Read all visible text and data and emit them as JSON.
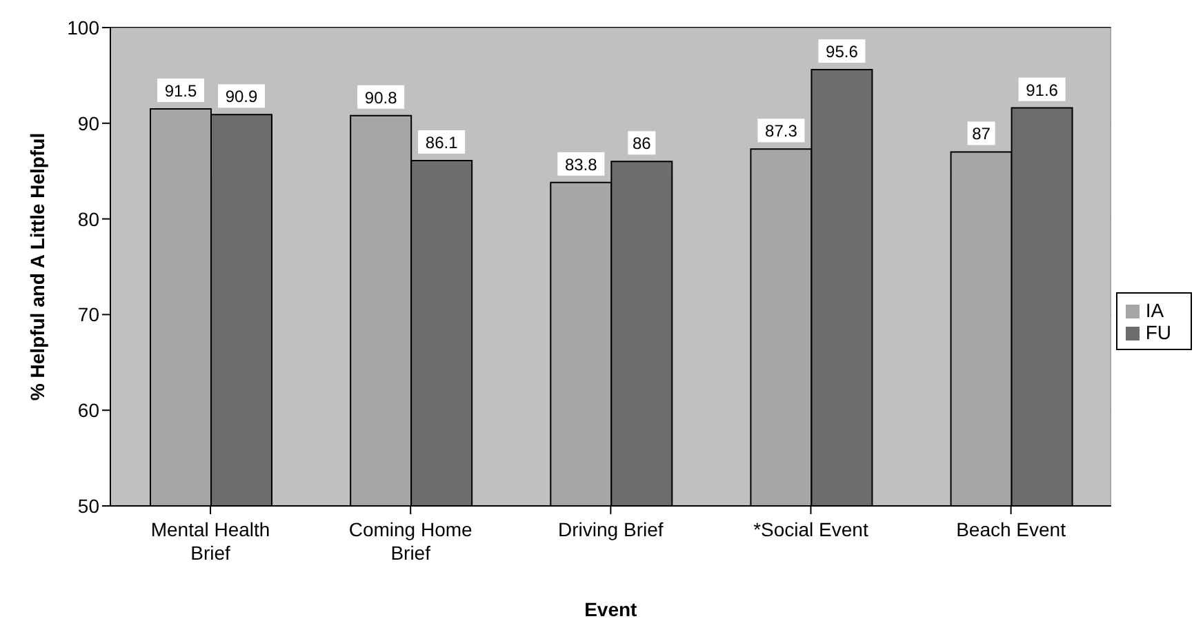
{
  "chart_data": {
    "type": "bar",
    "xlabel": "Event",
    "ylabel": "% Helpful and A Little Helpful",
    "categories": [
      "Mental Health Brief",
      "Coming Home Brief",
      "Driving Brief",
      "*Social Event",
      "Beach Event"
    ],
    "series": [
      {
        "name": "IA",
        "color": "#a6a6a6",
        "values": [
          91.5,
          90.8,
          83.8,
          87.3,
          87
        ]
      },
      {
        "name": "FU",
        "color": "#6d6d70",
        "values": [
          90.9,
          86.1,
          86,
          95.6,
          91.6
        ]
      }
    ],
    "ylim": [
      50,
      100
    ],
    "yticks": [
      50,
      60,
      70,
      80,
      90,
      100
    ],
    "grid": "y",
    "legend": "right",
    "data_labels": true
  }
}
